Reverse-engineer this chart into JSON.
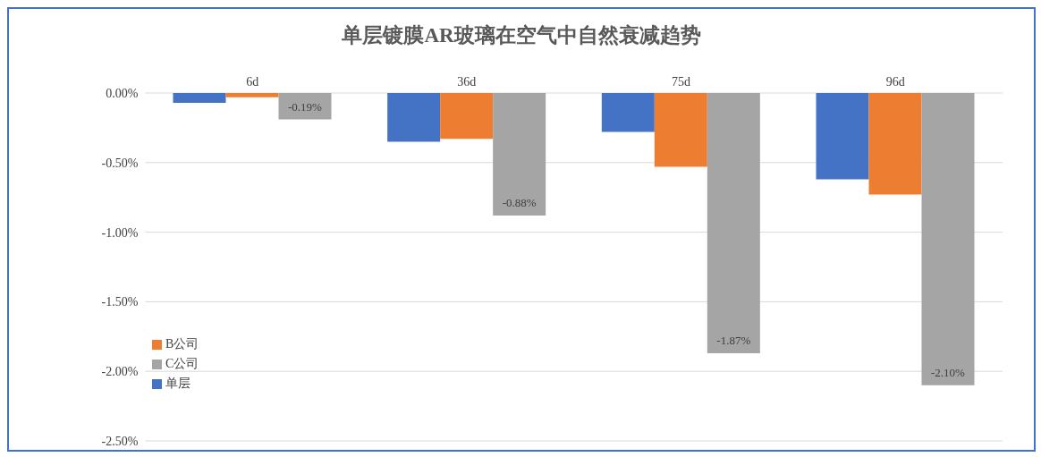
{
  "chart_data": {
    "type": "bar",
    "title": "单层镀膜AR玻璃在空气中自然衰减趋势",
    "categories": [
      "6d",
      "36d",
      "75d",
      "96d"
    ],
    "series": [
      {
        "name": "单层",
        "color": "#4472c4",
        "values": [
          -0.07,
          -0.35,
          -0.28,
          -0.62
        ]
      },
      {
        "name": "B公司",
        "color": "#ed7d31",
        "values": [
          -0.03,
          -0.33,
          -0.53,
          -0.73
        ]
      },
      {
        "name": "C公司",
        "color": "#a5a5a5",
        "values": [
          -0.19,
          -0.88,
          -1.87,
          -2.1
        ],
        "value_labels": [
          "-0.19%",
          "-0.88%",
          "-1.87%",
          "-2.10%"
        ]
      }
    ],
    "ylim": [
      -2.5,
      0
    ],
    "yticks": [
      {
        "value": 0,
        "label": "0.00%"
      },
      {
        "value": -0.5,
        "label": "-0.50%"
      },
      {
        "value": -1,
        "label": "-1.00%"
      },
      {
        "value": -1.5,
        "label": "-1.50%"
      },
      {
        "value": -2,
        "label": "-2.00%"
      },
      {
        "value": -2.5,
        "label": "-2.50%"
      }
    ],
    "grid": "y",
    "legend": "left"
  }
}
